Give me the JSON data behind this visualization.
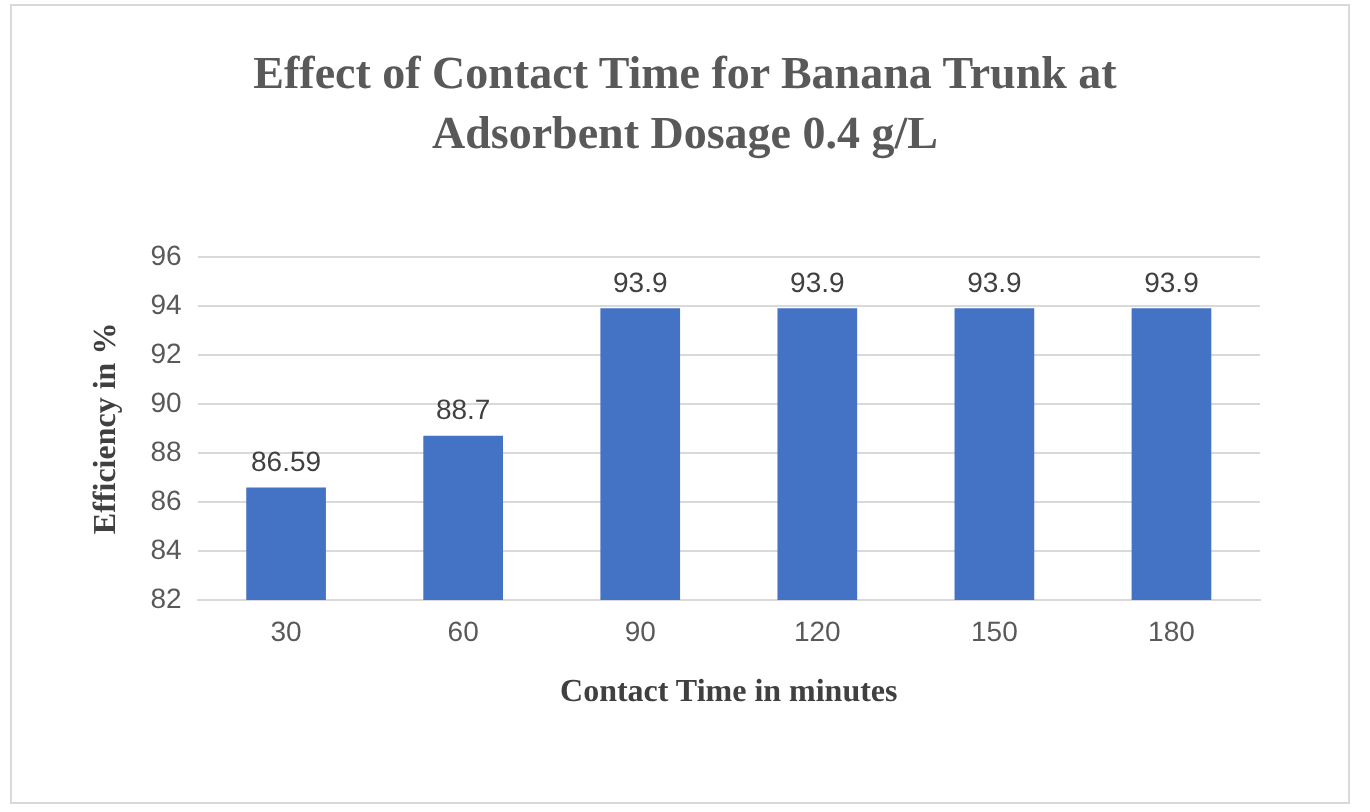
{
  "chart_data": {
    "type": "bar",
    "title": "Effect of Contact Time for Banana Trunk at Adsorbent Dosage 0.4 g/L",
    "xlabel": "Contact Time in minutes",
    "ylabel": "Efficiency in %",
    "categories": [
      "30",
      "60",
      "90",
      "120",
      "150",
      "180"
    ],
    "values": [
      86.59,
      88.7,
      93.9,
      93.9,
      93.9,
      93.9
    ],
    "color": "#4472c4",
    "ylim": [
      82,
      96
    ],
    "yticks": [
      82,
      84,
      86,
      88,
      90,
      92,
      94,
      96
    ],
    "grid": "y",
    "data_labels": true
  }
}
